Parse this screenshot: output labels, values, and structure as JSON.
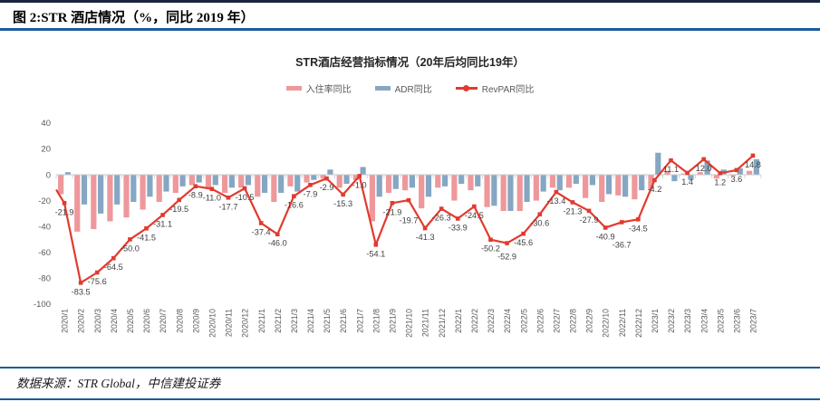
{
  "page": {
    "header_title": "图 2:STR 酒店情况（%，同比 2019 年）",
    "source_note": "数据来源：STR Global，中信建投证券"
  },
  "chart_data": {
    "type": "bar",
    "subtype": "grouped-bars-with-line",
    "title": "STR酒店经营指标情况（20年后均同比19年）",
    "legend_position": "top",
    "grid": false,
    "ylim": [
      -100,
      40
    ],
    "yticks": [
      40,
      20,
      0,
      -20,
      -40,
      -60,
      -80,
      -100
    ],
    "xlabel": "",
    "ylabel": "",
    "lead_in_value": -11.5,
    "categories": [
      "2020/1",
      "2020/2",
      "2020/3",
      "2020/4",
      "2020/5",
      "2020/6",
      "2020/7",
      "2020/8",
      "2020/9",
      "2020/10",
      "2020/11",
      "2020/12",
      "2021/1",
      "2021/2",
      "2021/3",
      "2021/4",
      "2021/5",
      "2021/6",
      "2021/7",
      "2021/8",
      "2021/9",
      "2021/10",
      "2021/11",
      "2021/12",
      "2022/1",
      "2022/2",
      "2022/3",
      "2022/4",
      "2022/5",
      "2022/6",
      "2022/7",
      "2022/8",
      "2022/9",
      "2022/10",
      "2022/11",
      "2022/12",
      "2023/1",
      "2023/2",
      "2023/3",
      "2023/4",
      "2023/5",
      "2023/6",
      "2023/7"
    ],
    "series": [
      {
        "name": "入住率同比",
        "type": "bar",
        "color": "#ee989c",
        "values": [
          -15,
          -44,
          -42,
          -36,
          -33,
          -27,
          -21,
          -14,
          -8,
          -11,
          -14,
          -10,
          -17,
          -21,
          -9,
          -6,
          -3,
          -10,
          -4,
          -36,
          -14,
          -12,
          -26,
          -10,
          -20,
          -12,
          -25,
          -28,
          -28,
          -20,
          -10,
          -10,
          -18,
          -21,
          -16,
          -19,
          -11,
          3,
          1,
          2,
          -3,
          -1,
          3
        ]
      },
      {
        "name": "ADR同比",
        "type": "bar",
        "color": "#85a7c3",
        "values": [
          2,
          -23,
          -30,
          -23,
          -21,
          -17,
          -13,
          -9,
          -6,
          -8,
          -10,
          -8,
          -14,
          -14,
          -13,
          -4,
          4,
          -7,
          6,
          -17,
          -11,
          -10,
          -17,
          -9,
          -7,
          -9,
          -24,
          -28,
          -21,
          -13,
          -12,
          -7,
          -8,
          -15,
          -17,
          -12,
          17,
          -5,
          -4,
          11,
          4,
          5,
          12
        ]
      },
      {
        "name": "RevPAR同比",
        "type": "line",
        "color": "#e23a2e",
        "labeled": true,
        "values": [
          -21.9,
          -83.5,
          -75.6,
          -64.5,
          -50.0,
          -41.5,
          -31.1,
          -19.5,
          -8.9,
          -11.0,
          -17.7,
          -10.5,
          -37.4,
          -46.0,
          -16.6,
          -7.9,
          -2.9,
          -15.3,
          -1.0,
          -54.1,
          -21.9,
          -19.7,
          -41.3,
          -26.3,
          -33.9,
          -24.5,
          -50.2,
          -52.9,
          -45.6,
          -30.6,
          -13.4,
          -21.3,
          -27.9,
          -40.9,
          -36.7,
          -34.5,
          -4.2,
          11.1,
          1.4,
          12.0,
          1.2,
          3.6,
          14.8
        ]
      }
    ]
  }
}
